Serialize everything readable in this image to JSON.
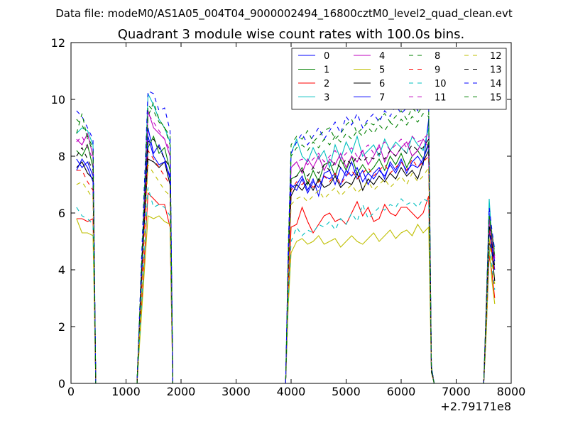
{
  "figure": {
    "suptitle": "Data file: modeM0/AS1A05_004T04_9000002494_16800cztM0_level2_quad_clean.evt"
  },
  "chart_data": {
    "type": "line",
    "title": "Quadrant 3 module wise count rates with 100.0s bins.",
    "xlabel": "",
    "ylabel": "",
    "x_offset_label": "+2.79171e8",
    "xlim": [
      0,
      8000
    ],
    "ylim": [
      0,
      12
    ],
    "xticks": [
      0,
      1000,
      2000,
      3000,
      4000,
      5000,
      6000,
      7000,
      8000
    ],
    "yticks": [
      0,
      2,
      4,
      6,
      8,
      10,
      12
    ],
    "grid": false,
    "legend_position": "top-right",
    "legend_columns": 4,
    "x": [
      100,
      200,
      300,
      400,
      450,
      500,
      1200,
      1300,
      1400,
      1500,
      1600,
      1700,
      1800,
      1850,
      1900,
      3900,
      3950,
      4000,
      4100,
      4200,
      4300,
      4400,
      4500,
      4600,
      4700,
      4800,
      4900,
      5000,
      5100,
      5200,
      5300,
      5400,
      5500,
      5600,
      5700,
      5800,
      5900,
      6000,
      6100,
      6200,
      6300,
      6400,
      6500,
      6550,
      6600,
      6700,
      7500,
      7550,
      7600,
      7650,
      7700
    ],
    "series": [
      {
        "name": "0",
        "color": "#0000ff",
        "style": "solid",
        "values": [
          7.9,
          7.6,
          7.8,
          7.3,
          0,
          0,
          0,
          4.5,
          9.0,
          8.1,
          8.4,
          7.9,
          7.2,
          0,
          0,
          0,
          4.0,
          6.9,
          7.0,
          7.3,
          6.8,
          7.2,
          6.6,
          7.4,
          7.5,
          7.0,
          7.6,
          7.3,
          7.8,
          7.2,
          7.5,
          7.0,
          7.4,
          7.6,
          7.2,
          7.8,
          7.5,
          7.9,
          7.4,
          7.8,
          8.0,
          7.7,
          9.3,
          0.5,
          0,
          0,
          0,
          2.5,
          6.0,
          4.8,
          4.3
        ]
      },
      {
        "name": "1",
        "color": "#008000",
        "style": "solid",
        "values": [
          8.2,
          8.0,
          8.4,
          7.6,
          0,
          0,
          0,
          4.7,
          8.3,
          8.7,
          8.1,
          8.3,
          7.5,
          0,
          0,
          0,
          4.2,
          7.2,
          7.3,
          7.6,
          7.0,
          7.5,
          7.1,
          7.7,
          7.8,
          7.3,
          7.9,
          7.5,
          8.0,
          7.4,
          7.7,
          7.4,
          7.6,
          7.9,
          7.5,
          8.0,
          7.7,
          8.1,
          7.6,
          8.0,
          8.2,
          7.9,
          8.5,
          0.5,
          0,
          0,
          0,
          2.6,
          5.3,
          5.0,
          4.5
        ]
      },
      {
        "name": "2",
        "color": "#ff0000",
        "style": "solid",
        "values": [
          5.8,
          5.8,
          5.7,
          5.8,
          0,
          0,
          0,
          3.3,
          6.7,
          6.5,
          6.3,
          6.3,
          5.5,
          0,
          0,
          0,
          3.2,
          5.5,
          5.6,
          6.2,
          5.7,
          5.3,
          5.6,
          5.9,
          6.0,
          5.7,
          5.8,
          5.6,
          6.0,
          6.4,
          5.9,
          6.2,
          5.7,
          5.8,
          6.3,
          6.0,
          5.9,
          6.2,
          6.2,
          6.0,
          5.8,
          6.0,
          6.6,
          0.5,
          0,
          0,
          0,
          2.0,
          4.5,
          3.9,
          3.0
        ]
      },
      {
        "name": "3",
        "color": "#00bfbf",
        "style": "solid",
        "values": [
          8.8,
          9.0,
          8.9,
          8.4,
          0,
          0,
          0,
          5.0,
          10.2,
          9.8,
          9.3,
          9.0,
          8.5,
          0,
          0,
          0,
          4.5,
          8.1,
          8.6,
          8.0,
          7.8,
          8.3,
          7.9,
          8.2,
          7.6,
          8.4,
          7.9,
          8.5,
          8.1,
          8.7,
          8.0,
          8.2,
          8.4,
          8.0,
          8.6,
          8.2,
          8.5,
          8.3,
          8.1,
          8.7,
          8.4,
          8.2,
          9.0,
          0.6,
          0,
          0,
          0,
          2.8,
          6.5,
          5.0,
          4.8
        ]
      },
      {
        "name": "4",
        "color": "#bf00bf",
        "style": "solid",
        "values": [
          8.6,
          8.4,
          8.8,
          8.0,
          0,
          0,
          0,
          4.9,
          9.6,
          9.0,
          8.8,
          8.6,
          8.0,
          0,
          0,
          0,
          4.3,
          7.6,
          7.8,
          7.4,
          7.9,
          7.6,
          8.0,
          7.5,
          7.9,
          7.7,
          8.1,
          7.6,
          8.0,
          7.8,
          8.2,
          7.7,
          8.0,
          8.4,
          7.8,
          8.2,
          8.0,
          8.3,
          8.5,
          8.0,
          8.2,
          8.6,
          8.3,
          0.5,
          0,
          0,
          0,
          2.6,
          5.8,
          5.1,
          4.4
        ]
      },
      {
        "name": "5",
        "color": "#bfbf00",
        "style": "solid",
        "values": [
          5.8,
          5.3,
          5.3,
          5.2,
          0,
          0,
          0,
          3.0,
          5.9,
          5.8,
          5.9,
          5.7,
          5.6,
          0,
          0,
          0,
          2.8,
          4.6,
          5.0,
          5.1,
          4.9,
          5.0,
          5.2,
          4.9,
          5.0,
          5.1,
          4.8,
          5.0,
          5.2,
          5.0,
          4.9,
          5.1,
          5.3,
          5.0,
          5.2,
          5.4,
          5.1,
          5.3,
          5.4,
          5.2,
          5.6,
          5.3,
          5.5,
          0.4,
          0,
          0,
          0,
          1.9,
          4.8,
          3.6,
          2.8
        ]
      },
      {
        "name": "6",
        "color": "#000000",
        "style": "solid",
        "values": [
          7.6,
          7.8,
          7.4,
          7.2,
          0,
          0,
          0,
          4.5,
          7.9,
          7.8,
          7.6,
          7.8,
          7.0,
          0,
          0,
          0,
          4.0,
          6.6,
          7.0,
          6.8,
          7.1,
          6.8,
          7.2,
          6.9,
          7.0,
          7.3,
          6.9,
          7.1,
          7.0,
          7.4,
          6.8,
          7.2,
          7.0,
          7.3,
          7.1,
          7.4,
          7.2,
          7.6,
          7.3,
          7.5,
          7.2,
          7.8,
          8.2,
          0.4,
          0,
          0,
          0,
          2.4,
          5.0,
          4.6,
          3.6
        ]
      },
      {
        "name": "7",
        "color": "#0000ff",
        "style": "solid",
        "values": [
          7.5,
          7.9,
          7.6,
          7.1,
          0,
          0,
          0,
          4.6,
          8.7,
          8.0,
          7.7,
          7.8,
          7.3,
          0,
          0,
          0,
          4.1,
          7.0,
          6.8,
          7.2,
          6.7,
          7.1,
          6.9,
          7.3,
          7.2,
          7.4,
          7.0,
          7.5,
          7.3,
          7.6,
          7.1,
          7.4,
          7.2,
          7.5,
          7.3,
          7.7,
          7.4,
          7.8,
          7.5,
          7.7,
          7.6,
          7.9,
          8.4,
          0.5,
          0,
          0,
          0,
          2.5,
          5.4,
          4.7,
          4.0
        ]
      },
      {
        "name": "8",
        "color": "#008000",
        "style": "dashed",
        "values": [
          9.3,
          9.1,
          8.7,
          8.3,
          0,
          0,
          0,
          5.2,
          9.4,
          9.9,
          9.3,
          9.0,
          8.7,
          0,
          0,
          0,
          4.8,
          8.4,
          8.7,
          8.6,
          8.9,
          8.5,
          8.7,
          8.9,
          9.0,
          8.6,
          8.8,
          9.1,
          9.3,
          8.8,
          9.0,
          9.2,
          9.1,
          9.3,
          9.5,
          9.2,
          9.4,
          9.6,
          9.3,
          9.7,
          9.5,
          9.8,
          9.6,
          0.6,
          0,
          0,
          0,
          2.9,
          5.9,
          5.3,
          4.6
        ]
      },
      {
        "name": "9",
        "color": "#ff0000",
        "style": "dashed",
        "values": [
          7.5,
          7.5,
          7.1,
          6.8,
          0,
          0,
          0,
          4.1,
          8.2,
          7.9,
          7.6,
          7.3,
          7.0,
          0,
          0,
          0,
          3.8,
          6.8,
          7.1,
          7.0,
          7.2,
          6.9,
          7.1,
          7.3,
          7.1,
          7.4,
          7.0,
          7.3,
          7.5,
          7.2,
          7.4,
          7.6,
          7.3,
          7.5,
          7.7,
          7.4,
          7.6,
          7.8,
          7.5,
          7.9,
          7.6,
          7.8,
          8.0,
          0.5,
          0,
          0,
          0,
          2.3,
          5.5,
          4.6,
          3.9
        ]
      },
      {
        "name": "10",
        "color": "#00bfbf",
        "style": "dashed",
        "values": [
          6.2,
          5.9,
          5.8,
          5.6,
          0,
          0,
          0,
          3.4,
          6.9,
          6.2,
          6.3,
          6.2,
          5.9,
          0,
          0,
          0,
          3.0,
          5.0,
          5.5,
          5.2,
          5.4,
          5.3,
          5.6,
          5.5,
          5.7,
          5.4,
          5.8,
          5.6,
          6.0,
          5.7,
          6.3,
          5.8,
          6.0,
          6.2,
          6.1,
          6.3,
          6.2,
          6.5,
          6.3,
          6.4,
          6.2,
          6.5,
          6.4,
          0.5,
          0,
          0,
          0,
          2.1,
          4.7,
          4.1,
          3.3
        ]
      },
      {
        "name": "11",
        "color": "#bf00bf",
        "style": "dashed",
        "values": [
          8.5,
          8.7,
          8.3,
          7.9,
          0,
          0,
          0,
          4.8,
          9.5,
          9.2,
          8.9,
          8.6,
          8.2,
          0,
          0,
          0,
          4.4,
          7.6,
          7.8,
          7.9,
          7.7,
          7.9,
          8.1,
          7.8,
          8.0,
          8.2,
          7.9,
          8.1,
          8.3,
          8.0,
          8.2,
          8.4,
          8.1,
          8.3,
          8.5,
          8.2,
          8.4,
          8.6,
          8.3,
          8.7,
          8.5,
          8.6,
          8.8,
          0.5,
          0,
          0,
          0,
          2.6,
          5.8,
          5.0,
          4.4
        ]
      },
      {
        "name": "12",
        "color": "#bfbf00",
        "style": "dashed",
        "values": [
          7.0,
          7.1,
          6.8,
          6.5,
          0,
          0,
          0,
          3.8,
          7.7,
          7.4,
          7.1,
          6.8,
          6.6,
          0,
          0,
          0,
          3.5,
          6.3,
          6.5,
          6.6,
          6.4,
          6.6,
          6.8,
          6.5,
          6.7,
          6.9,
          6.6,
          6.8,
          7.0,
          6.7,
          6.9,
          7.1,
          6.8,
          7.0,
          7.2,
          6.9,
          7.1,
          7.3,
          7.0,
          7.4,
          7.1,
          7.3,
          7.6,
          0.4,
          0,
          0,
          0,
          2.2,
          5.1,
          4.3,
          3.5
        ]
      },
      {
        "name": "13",
        "color": "#000000",
        "style": "dashed",
        "values": [
          8.0,
          8.3,
          7.9,
          7.5,
          0,
          0,
          0,
          4.7,
          8.5,
          8.6,
          8.3,
          7.9,
          7.6,
          0,
          0,
          0,
          4.2,
          7.2,
          7.3,
          7.5,
          7.3,
          7.6,
          7.4,
          7.7,
          7.5,
          7.8,
          7.6,
          7.9,
          7.7,
          8.0,
          7.8,
          8.0,
          7.9,
          8.1,
          7.9,
          8.2,
          8.0,
          8.3,
          8.1,
          8.4,
          8.2,
          8.3,
          8.6,
          0.5,
          0,
          0,
          0,
          2.5,
          5.6,
          4.9,
          4.1
        ]
      },
      {
        "name": "14",
        "color": "#0000ff",
        "style": "dashed",
        "values": [
          9.6,
          9.4,
          9.0,
          8.6,
          0,
          0,
          0,
          5.4,
          10.3,
          10.2,
          9.6,
          9.7,
          8.9,
          0,
          0,
          0,
          4.9,
          8.1,
          8.5,
          8.8,
          8.4,
          8.7,
          9.0,
          8.6,
          8.9,
          9.2,
          8.8,
          9.4,
          9.1,
          9.5,
          9.0,
          9.3,
          9.5,
          9.2,
          9.6,
          9.4,
          9.8,
          9.5,
          9.7,
          10.0,
          9.6,
          9.8,
          9.7,
          0.6,
          0,
          0,
          0,
          3.0,
          6.2,
          5.4,
          4.7
        ]
      },
      {
        "name": "15",
        "color": "#008000",
        "style": "dashed",
        "values": [
          8.8,
          9.5,
          8.6,
          8.2,
          0,
          0,
          0,
          5.1,
          9.8,
          9.6,
          9.2,
          9.0,
          8.4,
          0,
          0,
          0,
          4.6,
          8.0,
          8.3,
          8.4,
          8.2,
          8.5,
          8.3,
          8.6,
          8.4,
          8.7,
          8.5,
          8.8,
          8.6,
          8.9,
          8.7,
          9.0,
          8.8,
          9.1,
          8.9,
          9.2,
          9.0,
          9.3,
          9.1,
          9.4,
          9.2,
          9.5,
          9.4,
          0.5,
          0,
          0,
          0,
          2.8,
          5.9,
          5.2,
          4.5
        ]
      }
    ]
  }
}
